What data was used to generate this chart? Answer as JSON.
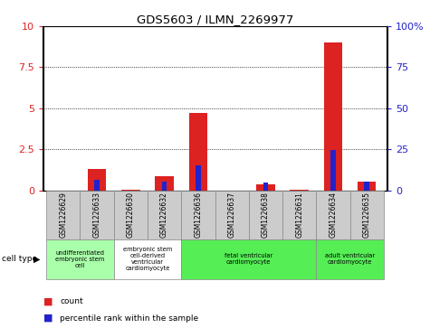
{
  "title": "GDS5603 / ILMN_2269977",
  "samples": [
    "GSM1226629",
    "GSM1226633",
    "GSM1226630",
    "GSM1226632",
    "GSM1226636",
    "GSM1226637",
    "GSM1226638",
    "GSM1226631",
    "GSM1226634",
    "GSM1226635"
  ],
  "count_values": [
    0.0,
    1.3,
    0.05,
    0.85,
    4.7,
    0.0,
    0.35,
    0.05,
    9.0,
    0.55
  ],
  "percentile_values": [
    0.0,
    6.5,
    0.0,
    5.0,
    15.0,
    0.0,
    4.5,
    0.0,
    24.5,
    5.0
  ],
  "ylim_left": [
    0,
    10
  ],
  "ylim_right": [
    0,
    100
  ],
  "yticks_left": [
    0,
    2.5,
    5.0,
    7.5,
    10
  ],
  "yticks_right": [
    0,
    25,
    50,
    75,
    100
  ],
  "count_color": "#dd2222",
  "percentile_color": "#2222cc",
  "cell_types": [
    {
      "label": "undifferentiated\nembryonic stem\ncell",
      "indices": [
        0,
        1
      ],
      "color": "#aaffaa"
    },
    {
      "label": "embryonic stem\ncell-derived\nventricular\ncardiomyocyte",
      "indices": [
        2,
        3
      ],
      "color": "#ffffff"
    },
    {
      "label": "fetal ventricular\ncardiomyocyte",
      "indices": [
        4,
        5,
        6,
        7
      ],
      "color": "#55ee55"
    },
    {
      "label": "adult ventricular\ncardiomyocyte",
      "indices": [
        8,
        9
      ],
      "color": "#55ee55"
    }
  ],
  "legend_count_label": "count",
  "legend_percentile_label": "percentile rank within the sample",
  "cell_type_label": "cell type"
}
